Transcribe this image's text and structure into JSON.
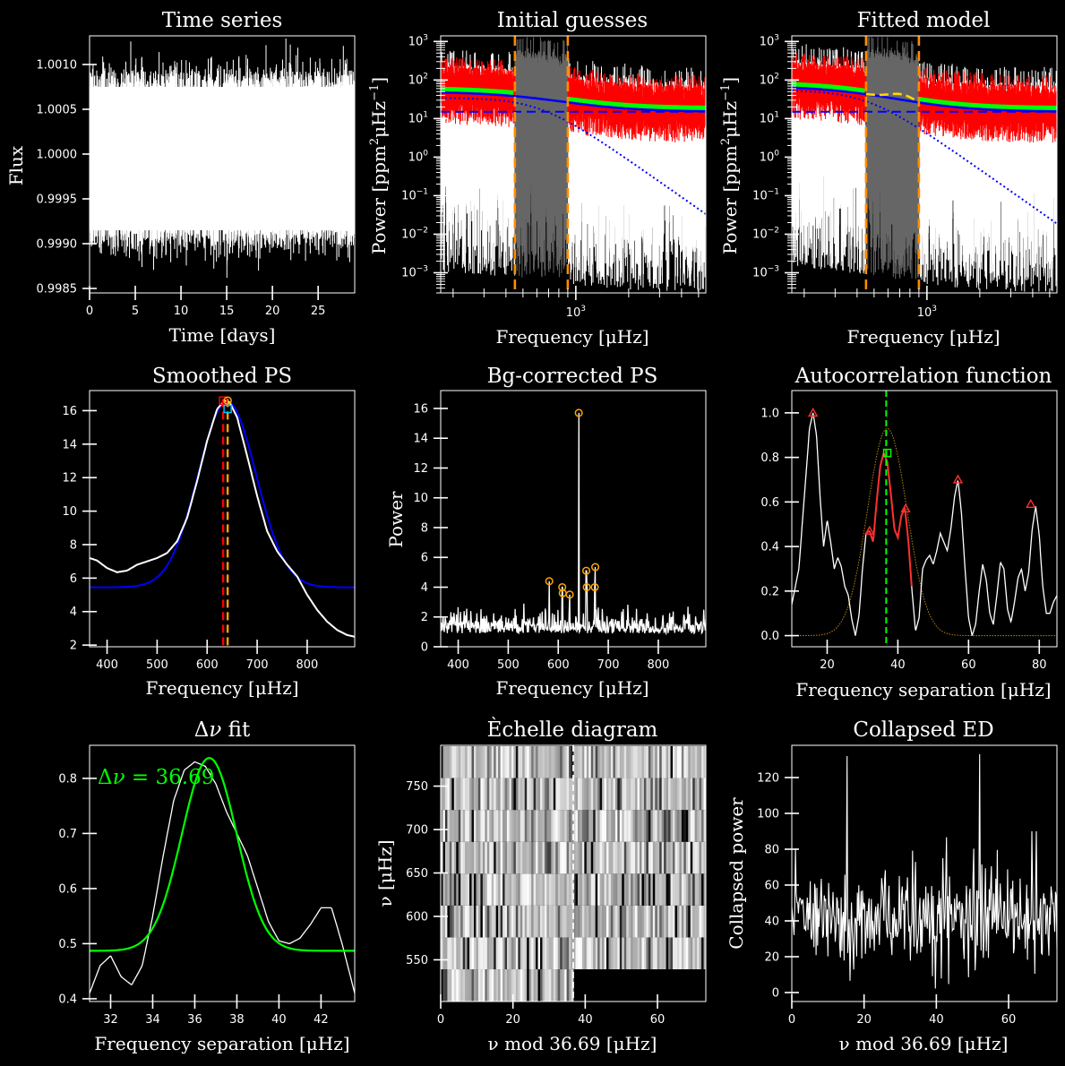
{
  "panels": [
    {
      "id": "time-series",
      "chart_data": {
        "type": "line",
        "title": "Time series",
        "xlabel": "Time [days]",
        "ylabel": "Flux",
        "xlim": [
          0,
          29
        ],
        "ylim": [
          0.99845,
          1.00132
        ],
        "xticks": [
          0,
          5,
          10,
          15,
          20,
          25
        ],
        "yticks": [
          0.9985,
          0.999,
          0.9995,
          1.0,
          1.0005,
          1.001
        ],
        "yticklabels": [
          "0.9985",
          "0.9990",
          "0.9995",
          "1.0000",
          "1.0005",
          "1.0010"
        ],
        "series": [
          {
            "color": "#ffffff",
            "band_low": 0.99915,
            "band_high": 1.00075
          }
        ]
      }
    },
    {
      "id": "initial-guesses",
      "chart_data": {
        "type": "line",
        "title": "Initial guesses",
        "xlabel": "Frequency [μHz]",
        "ylabel_main": "Power [ppm",
        "ylabel_sup1": "2",
        "ylabel_mid": "μHz",
        "ylabel_sup2": "−1",
        "ylabel_end": "]",
        "xscale": "log",
        "yscale": "log",
        "xlim": [
          170,
          5500
        ],
        "ylim": [
          0.0003,
          1400
        ],
        "xticks": [
          1000
        ],
        "xticklabels": [
          "10"
        ],
        "xtickexp": "3",
        "yticks": [
          0.001,
          0.01,
          0.1,
          1,
          10,
          100,
          1000
        ],
        "yticklabels_exp": [
          "−3",
          "−2",
          "−1",
          "0",
          "1",
          "2",
          "3"
        ],
        "numax_window": [
          450,
          900
        ],
        "background_white_noise": 15,
        "model": {
          "white_noise": 15,
          "harvey_amp": 35,
          "harvey_tau": 0.0016
        },
        "colors": {
          "spectrum": "#ffffff",
          "binned": "#ff0000",
          "smoothed": "#00ff00",
          "model": "#0000ff",
          "window": "#ff8c00",
          "excess": "#666666"
        }
      }
    },
    {
      "id": "fitted-model",
      "chart_data": {
        "type": "line",
        "title": "Fitted model",
        "xlabel": "Frequency [μHz]",
        "ylabel_main": "Power [ppm",
        "ylabel_sup1": "2",
        "ylabel_mid": "μHz",
        "ylabel_sup2": "−1",
        "ylabel_end": "]",
        "xscale": "log",
        "yscale": "log",
        "xlim": [
          170,
          5500
        ],
        "ylim": [
          0.0003,
          1400
        ],
        "xticks": [
          1000
        ],
        "xticklabels": [
          "10"
        ],
        "xtickexp": "3",
        "yticks": [
          0.001,
          0.01,
          0.1,
          1,
          10,
          100,
          1000
        ],
        "yticklabels_exp": [
          "−3",
          "−2",
          "−1",
          "0",
          "1",
          "2",
          "3"
        ],
        "numax_window": [
          450,
          900
        ],
        "model": {
          "white_noise": 15,
          "harvey_amp": 55,
          "harvey_tau": 0.0022
        },
        "gaussian": {
          "center": 700,
          "height": 12,
          "width": 100
        },
        "colors": {
          "spectrum": "#ffffff",
          "binned": "#ff0000",
          "smoothed": "#00ff00",
          "model": "#0000ff",
          "fit": "#ffd700",
          "window": "#ff8c00",
          "excess": "#666666"
        }
      }
    },
    {
      "id": "smoothed-ps",
      "chart_data": {
        "type": "line",
        "title": "Smoothed PS",
        "xlabel": "Frequency [μHz]",
        "ylabel": "",
        "xlim": [
          365,
          895
        ],
        "ylim": [
          1.9,
          17.2
        ],
        "xticks": [
          400,
          500,
          600,
          700,
          800
        ],
        "yticks": [
          2,
          4,
          6,
          8,
          10,
          12,
          14,
          16
        ],
        "white_curve": {
          "x": [
            365,
            380,
            400,
            420,
            440,
            460,
            480,
            500,
            520,
            540,
            560,
            580,
            600,
            620,
            635,
            645,
            660,
            680,
            700,
            720,
            740,
            760,
            780,
            800,
            820,
            840,
            860,
            880,
            895
          ],
          "y": [
            7.2,
            7.05,
            6.6,
            6.35,
            6.45,
            6.8,
            7.0,
            7.2,
            7.5,
            8.2,
            9.6,
            11.8,
            14.2,
            16.1,
            16.6,
            16.5,
            15.6,
            13.3,
            10.9,
            8.8,
            7.6,
            6.8,
            6.1,
            5.0,
            4.1,
            3.4,
            2.9,
            2.6,
            2.5
          ]
        },
        "gauss_fit": {
          "offset": 5.45,
          "amp": 11.1,
          "center": 640,
          "sigma": 58
        },
        "numax_smoothed": 632,
        "numax_fit": 641,
        "colors": {
          "data": "#ffffff",
          "fit": "#0000ff",
          "smoothed_line": "#ff0000",
          "fit_line": "#ffa500"
        }
      }
    },
    {
      "id": "bg-corrected-ps",
      "chart_data": {
        "type": "line",
        "title": "Bg-corrected PS",
        "xlabel": "Frequency [μHz]",
        "ylabel": "Power",
        "xlim": [
          365,
          895
        ],
        "ylim": [
          0,
          17.2
        ],
        "xticks": [
          400,
          500,
          600,
          700,
          800
        ],
        "yticks": [
          0,
          2,
          4,
          6,
          8,
          10,
          12,
          14,
          16
        ],
        "peaks": [
          {
            "x": 582,
            "y": 4.4
          },
          {
            "x": 608,
            "y": 4.0
          },
          {
            "x": 609,
            "y": 3.6
          },
          {
            "x": 623,
            "y": 3.5
          },
          {
            "x": 641,
            "y": 15.7
          },
          {
            "x": 656,
            "y": 5.1
          },
          {
            "x": 657,
            "y": 4.0
          },
          {
            "x": 674,
            "y": 5.35
          },
          {
            "x": 673,
            "y": 4.0
          }
        ],
        "colors": {
          "data": "#ffffff",
          "peaks": "#ffa500"
        }
      }
    },
    {
      "id": "acf",
      "chart_data": {
        "type": "line",
        "title": "Autocorrelation function",
        "xlabel": "Frequency separation [μHz]",
        "ylabel": "",
        "xlim": [
          10,
          85
        ],
        "ylim": [
          -0.05,
          1.1
        ],
        "xticks": [
          20,
          40,
          60,
          80
        ],
        "yticks": [
          0.0,
          0.2,
          0.4,
          0.6,
          0.8,
          1.0
        ],
        "yticklabels": [
          "0.0",
          "0.2",
          "0.4",
          "0.6",
          "0.8",
          "1.0"
        ],
        "acf_curve": {
          "x": [
            10,
            12,
            14,
            15,
            16,
            17,
            18,
            19,
            20,
            21,
            22,
            23,
            24,
            25,
            26,
            27,
            28,
            29,
            30,
            31,
            32,
            33,
            34,
            35,
            36,
            37,
            38,
            39,
            40,
            41,
            42,
            43,
            44,
            45,
            46,
            47,
            48,
            49,
            50,
            51,
            52,
            53,
            54,
            55,
            56,
            57,
            58,
            59,
            60,
            61,
            62,
            63,
            64,
            65,
            66,
            67,
            68,
            69,
            70,
            71,
            72,
            73,
            74,
            75,
            76,
            77,
            78,
            79,
            80,
            81,
            82,
            83,
            84,
            85
          ],
          "y": [
            0.14,
            0.3,
            0.72,
            0.93,
            1.0,
            0.9,
            0.62,
            0.4,
            0.52,
            0.42,
            0.3,
            0.35,
            0.31,
            0.22,
            0.18,
            0.07,
            0.0,
            0.09,
            0.3,
            0.46,
            0.47,
            0.42,
            0.6,
            0.76,
            0.82,
            0.78,
            0.64,
            0.48,
            0.44,
            0.54,
            0.57,
            0.42,
            0.2,
            0.02,
            0.08,
            0.3,
            0.34,
            0.36,
            0.32,
            0.38,
            0.46,
            0.42,
            0.38,
            0.48,
            0.62,
            0.7,
            0.55,
            0.3,
            0.08,
            0.0,
            0.05,
            0.2,
            0.32,
            0.25,
            0.1,
            0.05,
            0.18,
            0.33,
            0.3,
            0.12,
            0.06,
            0.15,
            0.26,
            0.3,
            0.2,
            0.28,
            0.48,
            0.58,
            0.45,
            0.22,
            0.1,
            0.1,
            0.15,
            0.18
          ]
        },
        "red_segment": {
          "x0": 31,
          "x1": 44
        },
        "peak_markers": [
          {
            "x": 16,
            "y": 1.0
          },
          {
            "x": 32,
            "y": 0.47
          },
          {
            "x": 42.2,
            "y": 0.57
          },
          {
            "x": 57,
            "y": 0.7
          },
          {
            "x": 77.6,
            "y": 0.59
          }
        ],
        "selected_peak": {
          "x": 37,
          "y": 0.82
        },
        "dnu_line": 36.7,
        "guide_gauss": {
          "center": 37,
          "sigma": 5.6,
          "amp": 0.93
        },
        "colors": {
          "acf": "#ffffff",
          "segment": "#ff3030",
          "markers": "#ff3030",
          "selected": "#00ff00",
          "dnu_line": "#00ff00",
          "guide": "#b8860b"
        }
      }
    },
    {
      "id": "dnu-fit",
      "chart_data": {
        "type": "line",
        "title_prefix": "Δ",
        "title_nu": "ν",
        "title_suffix": " fit",
        "xlabel": "Frequency separation [μHz]",
        "ylabel": "",
        "annotation_prefix": "Δ",
        "annotation_nu": "ν",
        "annotation_eq": " = ",
        "annotation_value": "36.69",
        "xlim": [
          31,
          43.6
        ],
        "ylim": [
          0.395,
          0.86
        ],
        "xticks": [
          32,
          34,
          36,
          38,
          40,
          42
        ],
        "yticks": [
          0.4,
          0.5,
          0.6,
          0.7,
          0.8
        ],
        "white_curve": {
          "x": [
            31,
            31.5,
            32,
            32.5,
            33,
            33.5,
            34,
            34.5,
            35,
            35.5,
            36,
            36.5,
            37,
            37.5,
            38,
            38.5,
            39,
            39.5,
            40,
            40.5,
            41,
            41.5,
            42,
            42.5,
            43,
            43.6
          ],
          "y": [
            0.41,
            0.46,
            0.478,
            0.44,
            0.425,
            0.46,
            0.55,
            0.66,
            0.76,
            0.815,
            0.83,
            0.822,
            0.79,
            0.74,
            0.7,
            0.66,
            0.6,
            0.54,
            0.505,
            0.5,
            0.51,
            0.535,
            0.565,
            0.565,
            0.5,
            0.41
          ]
        },
        "gauss_fit": {
          "offset": 0.487,
          "amp": 0.35,
          "center": 36.69,
          "sigma": 1.3
        },
        "colors": {
          "data": "#ffffff",
          "fit": "#00ff00",
          "annotation": "#00ff00"
        }
      }
    },
    {
      "id": "echelle",
      "chart_data": {
        "type": "heatmap",
        "title": "Èchelle diagram",
        "xlabel": "ν mod 36.69 [μHz]",
        "ylabel": "ν [μHz]",
        "xlim": [
          0,
          73.38
        ],
        "ylim": [
          502,
          797
        ],
        "xticks": [
          0,
          20,
          40,
          60
        ],
        "yticks": [
          550,
          600,
          650,
          700,
          750
        ],
        "dnu": 36.69,
        "row_bottoms": [
          502.4,
          539.1,
          575.8,
          612.5,
          649.2,
          685.9,
          722.6,
          759.3
        ],
        "colors": {
          "dnu_line": "#ffffff"
        }
      }
    },
    {
      "id": "collapsed-ed",
      "chart_data": {
        "type": "line",
        "title": "Collapsed ED",
        "xlabel": "ν mod 36.69 [μHz]",
        "ylabel": "Collapsed power",
        "xlim": [
          0,
          73.38
        ],
        "ylim": [
          -5,
          138
        ],
        "xticks": [
          0,
          20,
          40,
          60
        ],
        "yticks": [
          0,
          20,
          40,
          60,
          80,
          100,
          120
        ],
        "spikes": [
          {
            "x": 15.3,
            "y": 132
          },
          {
            "x": 51.9,
            "y": 133
          }
        ],
        "colors": {
          "data": "#ffffff"
        }
      }
    }
  ]
}
